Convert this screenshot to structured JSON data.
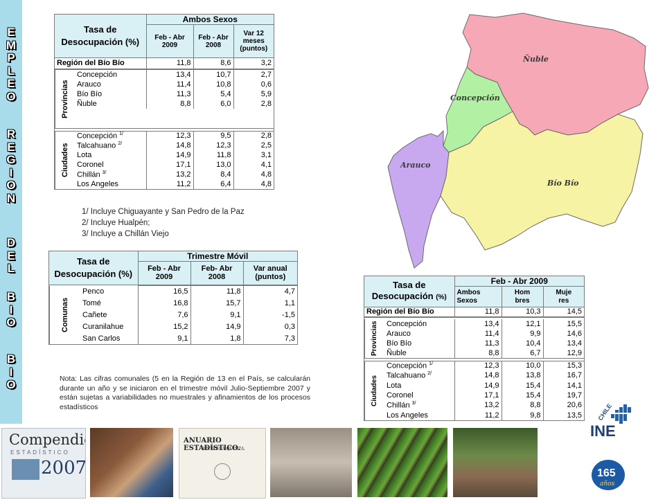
{
  "sidebar": {
    "words": [
      "EMPLEO",
      "REGION",
      "DEL",
      "BIO",
      "BIO"
    ]
  },
  "table_main": {
    "title_line1": "Tasa de",
    "title_line2": "Desocupación (%)",
    "group_header": "Ambos Sexos",
    "col1": [
      "Feb - Abr",
      "2009"
    ],
    "col2": [
      "Feb - Abr",
      "2008"
    ],
    "col3": [
      "Var 12",
      "meses",
      "(puntos)"
    ],
    "region": {
      "name": "Región del Bío Bío",
      "v1": "11,8",
      "v2": "8,6",
      "v3": "3,2"
    },
    "provincias_label": "Provincias",
    "provincias": [
      {
        "name": "Concepción",
        "v1": "13,4",
        "v2": "10,7",
        "v3": "2,7"
      },
      {
        "name": "Arauco",
        "v1": "11,4",
        "v2": "10,8",
        "v3": "0,6"
      },
      {
        "name": "Bío Bío",
        "v1": "11,3",
        "v2": "5,4",
        "v3": "5,9"
      },
      {
        "name": "Ñuble",
        "v1": "8,8",
        "v2": "6,0",
        "v3": "2,8"
      }
    ],
    "ciudades_label": "Ciudades",
    "ciudades": [
      {
        "name": "Concepción",
        "sup": "1/",
        "v1": "12,3",
        "v2": "9,5",
        "v3": "2,8"
      },
      {
        "name": "Talcahuano",
        "sup": "2/",
        "v1": "14,8",
        "v2": "12,3",
        "v3": "2,5"
      },
      {
        "name": "Lota",
        "sup": "",
        "v1": "14,9",
        "v2": "11,8",
        "v3": "3,1"
      },
      {
        "name": "Coronel",
        "sup": "",
        "v1": "17,1",
        "v2": "13,0",
        "v3": "4,1"
      },
      {
        "name": "Chillán",
        "sup": "3/",
        "v1": "13,2",
        "v2": "8,4",
        "v3": "4,8"
      },
      {
        "name": "Los Angeles",
        "sup": "",
        "v1": "11,2",
        "v2": "6,4",
        "v3": "4,8"
      }
    ]
  },
  "footnotes": [
    "1/ Incluye Chiguayante y San Pedro de la Paz",
    "2/ Incluye Hualpén;",
    "3/ Incluye a Chillán Viejo"
  ],
  "table_comunas": {
    "title_line1": "Tasa de",
    "title_line2": "Desocupación (%)",
    "group_header": "Trimestre Móvil",
    "col1": [
      "Feb - Abr",
      "2009"
    ],
    "col2": [
      "Feb- Abr",
      "2008"
    ],
    "col3": [
      "Var anual",
      "(puntos)"
    ],
    "comunas_label": "Comunas",
    "rows": [
      {
        "name": "Penco",
        "v1": "16,5",
        "v2": "11,8",
        "v3": "4,7"
      },
      {
        "name": "Tomé",
        "v1": "16,8",
        "v2": "15,7",
        "v3": "1,1"
      },
      {
        "name": "Cañete",
        "v1": "7,6",
        "v2": "9,1",
        "v3": "-1,5"
      },
      {
        "name": "Curanilahue",
        "v1": "15,2",
        "v2": "14,9",
        "v3": "0,3"
      },
      {
        "name": "San Carlos",
        "v1": "9,1",
        "v2": "1,8",
        "v3": "7,3"
      }
    ]
  },
  "nota": "Nota: Las cifras comunales (5 en la Región de 13 en el País, se calcularán durante un año y se iniciaron en el trimestre móvil Julio-Septiembre 2007 y están sujetas a variabilidades no muestrales y afinamientos de los procesos estadísticos",
  "map": {
    "labels": [
      "Ñuble",
      "Concepción",
      "Arauco",
      "Bío Bío"
    ],
    "colors": {
      "nuble": "#f7a8b6",
      "concepcion": "#b2f0a4",
      "arauco": "#c8a8ee",
      "biobio": "#f6f4a4"
    }
  },
  "table_sexo": {
    "title_line1": "Tasa de",
    "title_line2": "Desocupación",
    "title_unit": "(%)",
    "group_header": "Feb - Abr 2009",
    "col1": [
      "Ambos",
      "Sexos"
    ],
    "col2": [
      "Hom",
      "bres"
    ],
    "col3": [
      "Muje",
      "res"
    ],
    "region": {
      "name": "Región del Bío Bío",
      "v1": "11,8",
      "v2": "10,3",
      "v3": "14,5"
    },
    "provincias_label": "Provincias",
    "provincias": [
      {
        "name": "Concepción",
        "v1": "13,4",
        "v2": "12,1",
        "v3": "15,5"
      },
      {
        "name": "Arauco",
        "v1": "11,4",
        "v2": "9,9",
        "v3": "14,6"
      },
      {
        "name": "Bío Bío",
        "v1": "11,3",
        "v2": "10,4",
        "v3": "13,4"
      },
      {
        "name": "Ñuble",
        "v1": "8,8",
        "v2": "6,7",
        "v3": "12,9"
      }
    ],
    "ciudades_label": "Ciudades",
    "ciudades": [
      {
        "name": "Concepción",
        "sup": "1/",
        "v1": "12,3",
        "v2": "10,0",
        "v3": "15,3"
      },
      {
        "name": "Talcahuano",
        "sup": "2/",
        "v1": "14,8",
        "v2": "13,8",
        "v3": "16,7"
      },
      {
        "name": "Lota",
        "sup": "",
        "v1": "14,9",
        "v2": "15,4",
        "v3": "14,1"
      },
      {
        "name": "Coronel",
        "sup": "",
        "v1": "17,1",
        "v2": "15,4",
        "v3": "19,7"
      },
      {
        "name": "Chillán",
        "sup": "3/",
        "v1": "13,2",
        "v2": "8,8",
        "v3": "20,6"
      },
      {
        "name": "Los Angeles",
        "sup": "",
        "v1": "11,2",
        "v2": "9,8",
        "v3": "13,5"
      }
    ]
  },
  "ine_logo": {
    "country": "CHILE",
    "acronym": "INE",
    "anniversary": "165",
    "anniversary_word": "años"
  },
  "banner": {
    "compendio_title": "Compendio",
    "compendio_sub": "ESTADÍSTICO",
    "compendio_year": "2007",
    "anuario_title": "ANUARIO ESTADÍSTICO.",
    "anuario_sub": "ENTREGA QUINTA."
  }
}
